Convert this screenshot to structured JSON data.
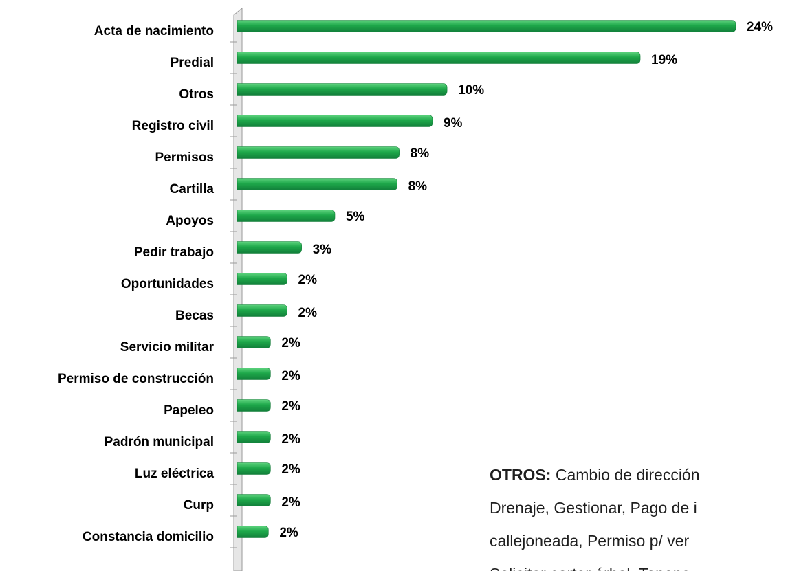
{
  "chart_data": {
    "type": "bar",
    "orientation": "horizontal",
    "categories": [
      "Acta de nacimiento",
      "Predial",
      "Otros",
      "Registro civil",
      "Permisos",
      "Cartilla",
      "Apoyos",
      "Pedir trabajo",
      "Oportunidades",
      "Becas",
      "Servicio militar",
      "Permiso de construcción",
      "Papeleo",
      "Padrón municipal",
      "Luz eléctrica",
      "Curp",
      "Constancia domicilio"
    ],
    "values": [
      24,
      19.4,
      10.1,
      9.4,
      7.8,
      7.7,
      4.7,
      3.1,
      2.4,
      2.4,
      1.6,
      1.6,
      1.6,
      1.6,
      1.6,
      1.6,
      1.5
    ],
    "value_labels": [
      "24%",
      "19%",
      "10%",
      "9%",
      "8%",
      "8%",
      "5%",
      "3%",
      "2%",
      "2%",
      "2%",
      "2%",
      "2%",
      "2%",
      "2%",
      "2%",
      "2%"
    ],
    "color": "#1ea84a",
    "annotation": {
      "heading": "OTROS:",
      "lines": [
        "Cambio de dirección",
        "Drenaje, Gestionar, Pago de i",
        "callejoneada, Permiso p/ ver",
        "Solicitar cortar árbol, Tenenc"
      ]
    }
  }
}
